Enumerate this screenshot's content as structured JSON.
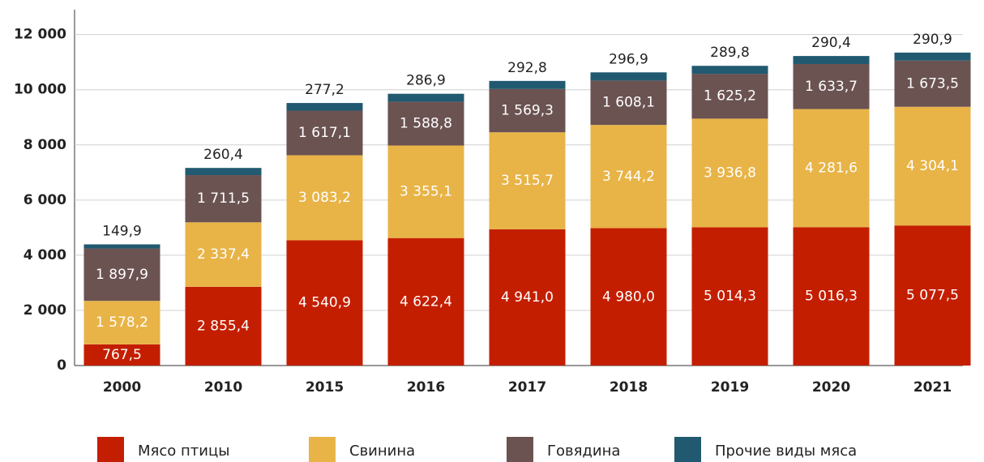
{
  "chart_data": {
    "type": "stacked_bar",
    "categories": [
      "2000",
      "2010",
      "2015",
      "2016",
      "2017",
      "2018",
      "2019",
      "2020",
      "2021"
    ],
    "series": [
      {
        "name": "Мясо птицы",
        "color": "#c41e00",
        "values": [
          767.5,
          2855.4,
          4540.9,
          4622.4,
          4941.0,
          4980.0,
          5014.3,
          5016.3,
          5077.5
        ],
        "value_labels": [
          "767,5",
          "2 855,4",
          "4 540,9",
          "4 622,4",
          "4 941,0",
          "4 980,0",
          "5 014,3",
          "5 016,3",
          "5 077,5"
        ]
      },
      {
        "name": "Свинина",
        "color": "#e8b447",
        "values": [
          1578.2,
          2337.4,
          3083.2,
          3355.1,
          3515.7,
          3744.2,
          3936.8,
          4281.6,
          4304.1
        ],
        "value_labels": [
          "1 578,2",
          "2 337,4",
          "3 083,2",
          "3 355,1",
          "3 515,7",
          "3 744,2",
          "3 936,8",
          "4 281,6",
          "4 304,1"
        ]
      },
      {
        "name": "Говядина",
        "color": "#6b5352",
        "values": [
          1897.9,
          1711.5,
          1617.1,
          1588.8,
          1569.3,
          1608.1,
          1625.2,
          1633.7,
          1673.5
        ],
        "value_labels": [
          "1 897,9",
          "1 711,5",
          "1 617,1",
          "1 588,8",
          "1 569,3",
          "1 608,1",
          "1 625,2",
          "1 633,7",
          "1 673,5"
        ]
      },
      {
        "name": "Прочие виды мяса",
        "color": "#215a70",
        "values": [
          149.9,
          260.4,
          277.2,
          286.9,
          292.8,
          296.9,
          289.8,
          290.4,
          290.9
        ],
        "value_labels": [
          "149,9",
          "260,4",
          "277,2",
          "286,9",
          "292,8",
          "296,9",
          "289,8",
          "290,4",
          "290,9"
        ]
      }
    ],
    "ylim": [
      0,
      12900
    ],
    "yticks": [
      0,
      {
        "value": 2000,
        "label": "2 000"
      },
      {
        "value": 4000,
        "label": "4 000"
      },
      {
        "value": 6000,
        "label": "6 000"
      },
      {
        "value": 8000,
        "label": "8 000"
      },
      {
        "value": 10000,
        "label": "10 000"
      },
      {
        "value": 12000,
        "label": "12 000"
      }
    ],
    "grid": true,
    "legend": "bottom"
  }
}
